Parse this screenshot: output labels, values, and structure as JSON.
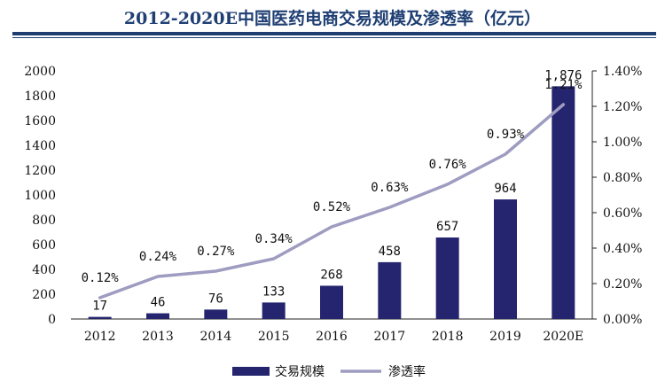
{
  "chart_data": {
    "type": "bar+line",
    "title": "2012-2020E中国医药电商交易规模及渗透率（亿元）",
    "categories": [
      "2012",
      "2013",
      "2014",
      "2015",
      "2016",
      "2017",
      "2018",
      "2019",
      "2020E"
    ],
    "series": [
      {
        "name": "交易规模",
        "type": "bar",
        "axis": "left",
        "values": [
          17,
          46,
          76,
          133,
          268,
          458,
          657,
          964,
          1876
        ],
        "labels": [
          "17",
          "46",
          "76",
          "133",
          "268",
          "458",
          "657",
          "964",
          "1,876"
        ]
      },
      {
        "name": "渗透率",
        "type": "line",
        "axis": "right",
        "values": [
          0.12,
          0.24,
          0.27,
          0.34,
          0.52,
          0.63,
          0.76,
          0.93,
          1.21
        ],
        "labels": [
          "0.12%",
          "0.24%",
          "0.27%",
          "0.34%",
          "0.52%",
          "0.63%",
          "0.76%",
          "0.93%",
          "1.21%"
        ]
      }
    ],
    "yleft": {
      "min": 0,
      "max": 2000,
      "ticks": [
        "0",
        "200",
        "400",
        "600",
        "800",
        "1000",
        "1200",
        "1400",
        "1600",
        "1800",
        "2000"
      ]
    },
    "yright": {
      "min": 0,
      "max": 1.4,
      "ticks": [
        "0.00%",
        "0.20%",
        "0.40%",
        "0.60%",
        "0.80%",
        "1.00%",
        "1.20%",
        "1.40%"
      ]
    },
    "legend": {
      "position": "bottom-center",
      "entries": [
        "交易规模",
        "渗透率"
      ]
    },
    "colors": {
      "bar": "#25246e",
      "line": "#9e9cc0",
      "title": "#1f3f73",
      "rule": "#1f3f73"
    }
  }
}
